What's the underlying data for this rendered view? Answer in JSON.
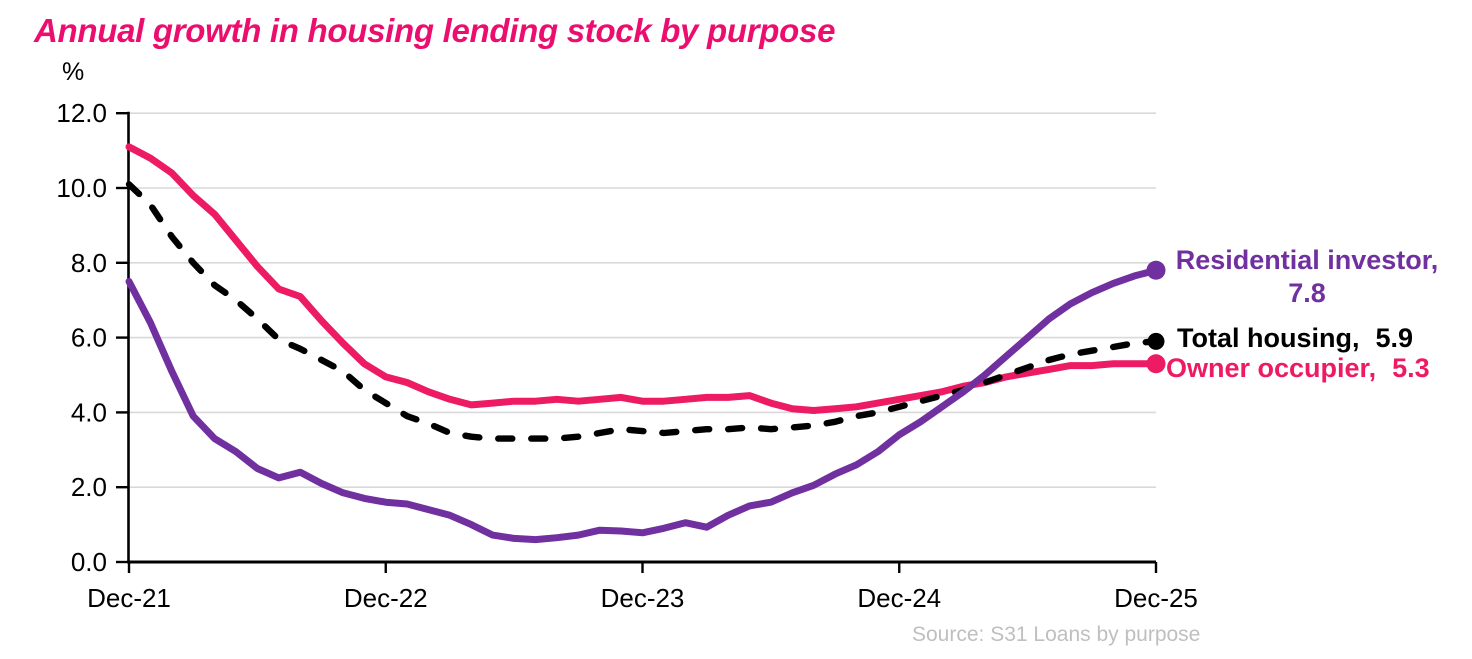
{
  "title": "Annual growth in housing lending stock by purpose",
  "y_axis_unit": "%",
  "source": "Source: S31 Loans by purpose",
  "colors": {
    "title": "#EC0E6F",
    "owner_occupier": "#ED1A64",
    "total_housing": "#000000",
    "residential_investor": "#7030A0",
    "gridline": "#D9D9D9",
    "axis": "#000000",
    "source_text": "#BFBFBF"
  },
  "chart_data": {
    "type": "line",
    "title": "Annual growth in housing lending stock by purpose",
    "ylabel": "%",
    "ylim": [
      0,
      12
    ],
    "grid": "horizontal",
    "legend_position": "right-of-line-end",
    "x_frequency": "monthly",
    "x_range": [
      "Dec-21",
      "Dec-25"
    ],
    "x_tick_labels": [
      "Dec-21",
      "Dec-22",
      "Dec-23",
      "Dec-24",
      "Dec-25"
    ],
    "x_tick_month_indices": [
      0,
      12,
      24,
      36,
      48
    ],
    "y_tick_labels": [
      "12.0",
      "10.0",
      "8.0",
      "6.0",
      "4.0",
      "2.0",
      "0.0"
    ],
    "y_tick_values": [
      12,
      10,
      8,
      6,
      4,
      2,
      0
    ],
    "series": [
      {
        "name": "Owner occupier",
        "label": "Owner occupier,",
        "end_value": "5.3",
        "color": "#ED1A64",
        "style": "solid",
        "values": [
          11.1,
          10.8,
          10.4,
          9.8,
          9.3,
          8.6,
          7.9,
          7.3,
          7.1,
          6.45,
          5.85,
          5.3,
          4.95,
          4.8,
          4.55,
          4.35,
          4.2,
          4.25,
          4.3,
          4.3,
          4.35,
          4.3,
          4.35,
          4.4,
          4.3,
          4.3,
          4.35,
          4.4,
          4.4,
          4.45,
          4.25,
          4.1,
          4.05,
          4.1,
          4.15,
          4.25,
          4.35,
          4.45,
          4.55,
          4.7,
          4.8,
          4.95,
          5.05,
          5.15,
          5.25,
          5.25,
          5.3,
          5.3,
          5.3
        ]
      },
      {
        "name": "Total housing",
        "label": "Total housing,",
        "end_value": "5.9",
        "color": "#000000",
        "style": "dashed",
        "values": [
          10.1,
          9.55,
          8.7,
          8.0,
          7.4,
          7.0,
          6.5,
          5.95,
          5.7,
          5.4,
          5.1,
          4.6,
          4.25,
          3.9,
          3.7,
          3.45,
          3.35,
          3.3,
          3.3,
          3.3,
          3.3,
          3.35,
          3.45,
          3.55,
          3.5,
          3.45,
          3.5,
          3.55,
          3.55,
          3.6,
          3.55,
          3.6,
          3.65,
          3.75,
          3.9,
          4.0,
          4.15,
          4.3,
          4.45,
          4.6,
          4.8,
          5.0,
          5.2,
          5.4,
          5.55,
          5.65,
          5.75,
          5.85,
          5.9
        ]
      },
      {
        "name": "Residential investor",
        "label": "Residential investor,",
        "end_value": "7.8",
        "color": "#7030A0",
        "style": "solid",
        "values": [
          7.5,
          6.4,
          5.1,
          3.9,
          3.3,
          2.95,
          2.5,
          2.25,
          2.4,
          2.1,
          1.85,
          1.7,
          1.6,
          1.55,
          1.4,
          1.25,
          1.0,
          0.72,
          0.63,
          0.6,
          0.65,
          0.72,
          0.85,
          0.83,
          0.78,
          0.9,
          1.05,
          0.93,
          1.25,
          1.5,
          1.6,
          1.85,
          2.05,
          2.35,
          2.6,
          2.95,
          3.4,
          3.75,
          4.15,
          4.55,
          5.0,
          5.5,
          6.0,
          6.5,
          6.9,
          7.2,
          7.45,
          7.65,
          7.8
        ]
      }
    ]
  }
}
